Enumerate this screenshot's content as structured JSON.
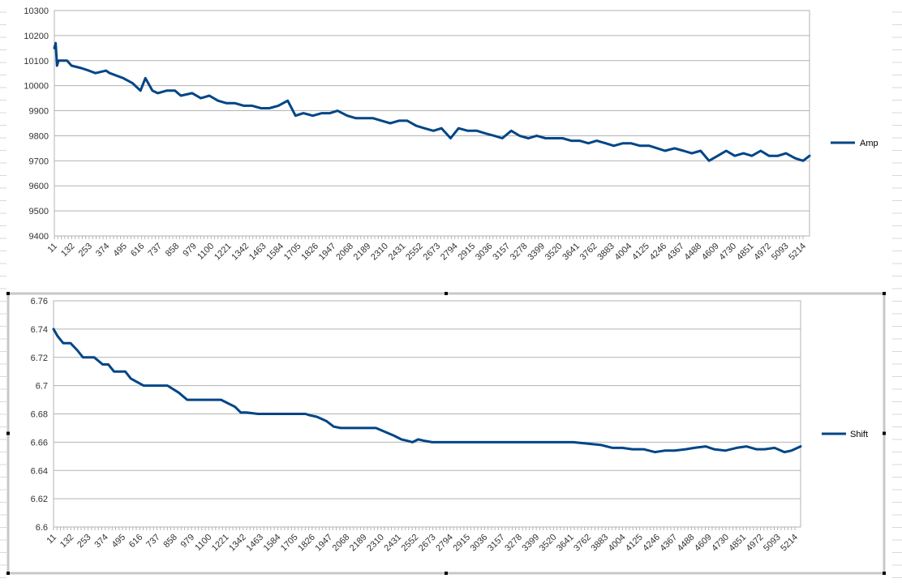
{
  "colors": {
    "series": "#004586",
    "grid": "#b3b3b3",
    "axis": "#b3b3b3",
    "frame": "#a0a0a0"
  },
  "chart_data": [
    {
      "type": "line",
      "legend": "right",
      "grid": true,
      "ylim": [
        9400,
        10300
      ],
      "yticks": [
        "10300",
        "10200",
        "10100",
        "10000",
        "9900",
        "9800",
        "9700",
        "9600",
        "9500",
        "9400"
      ],
      "categories": [
        "11",
        "132",
        "253",
        "374",
        "495",
        "616",
        "737",
        "858",
        "979",
        "1100",
        "1221",
        "1342",
        "1463",
        "1584",
        "1705",
        "1826",
        "1947",
        "2068",
        "2189",
        "2310",
        "2431",
        "2552",
        "2673",
        "2794",
        "2915",
        "3036",
        "3157",
        "3278",
        "3399",
        "3520",
        "3641",
        "3762",
        "3883",
        "4004",
        "4125",
        "4246",
        "4367",
        "4488",
        "4609",
        "4730",
        "4851",
        "4972",
        "5093",
        "5214"
      ],
      "series": [
        {
          "name": "Amp",
          "x": [
            11,
            20,
            30,
            40,
            60,
            100,
            132,
            200,
            253,
            300,
            374,
            400,
            495,
            560,
            616,
            650,
            700,
            737,
            800,
            858,
            900,
            979,
            1040,
            1100,
            1160,
            1221,
            1280,
            1342,
            1400,
            1463,
            1520,
            1584,
            1650,
            1705,
            1760,
            1826,
            1890,
            1947,
            2000,
            2068,
            2130,
            2189,
            2250,
            2310,
            2370,
            2431,
            2490,
            2552,
            2610,
            2673,
            2730,
            2794,
            2850,
            2915,
            2980,
            3036,
            3100,
            3157,
            3220,
            3278,
            3340,
            3399,
            3460,
            3520,
            3580,
            3641,
            3700,
            3762,
            3820,
            3883,
            3940,
            4004,
            4060,
            4125,
            4190,
            4246,
            4300,
            4367,
            4430,
            4488,
            4550,
            4609,
            4670,
            4730,
            4790,
            4851,
            4910,
            4972,
            5030,
            5093,
            5150,
            5214,
            5270,
            5315
          ],
          "values": [
            10150,
            10170,
            10080,
            10100,
            10100,
            10100,
            10080,
            10070,
            10060,
            10050,
            10060,
            10050,
            10030,
            10010,
            9980,
            10030,
            9980,
            9970,
            9980,
            9980,
            9960,
            9970,
            9950,
            9960,
            9940,
            9930,
            9930,
            9920,
            9920,
            9910,
            9910,
            9920,
            9940,
            9880,
            9890,
            9880,
            9890,
            9890,
            9900,
            9880,
            9870,
            9870,
            9870,
            9860,
            9850,
            9860,
            9860,
            9840,
            9830,
            9820,
            9830,
            9790,
            9830,
            9820,
            9820,
            9810,
            9800,
            9790,
            9820,
            9800,
            9790,
            9800,
            9790,
            9790,
            9790,
            9780,
            9780,
            9770,
            9780,
            9770,
            9760,
            9770,
            9770,
            9760,
            9760,
            9750,
            9740,
            9750,
            9740,
            9730,
            9740,
            9700,
            9720,
            9740,
            9720,
            9730,
            9720,
            9740,
            9720,
            9720,
            9730,
            9710,
            9700,
            9720
          ]
        }
      ]
    },
    {
      "type": "line",
      "legend": "right",
      "grid": true,
      "ylim": [
        6.6,
        6.76
      ],
      "yticks": [
        "6.76",
        "6.74",
        "6.72",
        "6.7",
        "6.68",
        "6.66",
        "6.64",
        "6.62",
        "6.6"
      ],
      "categories": [
        "11",
        "132",
        "253",
        "374",
        "495",
        "616",
        "737",
        "858",
        "979",
        "1100",
        "1221",
        "1342",
        "1463",
        "1584",
        "1705",
        "1826",
        "1947",
        "2068",
        "2189",
        "2310",
        "2431",
        "2552",
        "2673",
        "2794",
        "2915",
        "3036",
        "3157",
        "3278",
        "3399",
        "3520",
        "3641",
        "3762",
        "3883",
        "4004",
        "4125",
        "4246",
        "4367",
        "4488",
        "4609",
        "4730",
        "4851",
        "4972",
        "5093",
        "5214"
      ],
      "series": [
        {
          "name": "Shift",
          "x": [
            11,
            40,
            80,
            132,
            180,
            220,
            253,
            300,
            360,
            400,
            440,
            520,
            560,
            650,
            700,
            760,
            820,
            900,
            960,
            1000,
            1050,
            1100,
            1200,
            1300,
            1340,
            1380,
            1463,
            1600,
            1700,
            1800,
            1830,
            1880,
            1947,
            2000,
            2050,
            2150,
            2300,
            2420,
            2440,
            2480,
            2520,
            2560,
            2600,
            2640,
            2700,
            2780,
            2900,
            3000,
            3100,
            3300,
            3500,
            3700,
            3800,
            3900,
            3980,
            4050,
            4120,
            4200,
            4280,
            4350,
            4420,
            4500,
            4560,
            4640,
            4700,
            4780,
            4860,
            4930,
            5000,
            5060,
            5130,
            5200,
            5250,
            5315
          ],
          "values": [
            6.74,
            6.735,
            6.73,
            6.73,
            6.725,
            6.72,
            6.72,
            6.72,
            6.715,
            6.715,
            6.71,
            6.71,
            6.705,
            6.7,
            6.7,
            6.7,
            6.7,
            6.695,
            6.69,
            6.69,
            6.69,
            6.69,
            6.69,
            6.685,
            6.681,
            6.681,
            6.68,
            6.68,
            6.68,
            6.68,
            6.679,
            6.678,
            6.675,
            6.671,
            6.67,
            6.67,
            6.67,
            6.665,
            6.664,
            6.662,
            6.661,
            6.66,
            6.662,
            6.661,
            6.66,
            6.66,
            6.66,
            6.66,
            6.66,
            6.66,
            6.66,
            6.66,
            6.659,
            6.658,
            6.656,
            6.656,
            6.655,
            6.655,
            6.653,
            6.654,
            6.654,
            6.655,
            6.656,
            6.657,
            6.655,
            6.654,
            6.656,
            6.657,
            6.655,
            6.655,
            6.656,
            6.653,
            6.654,
            6.657
          ]
        }
      ]
    }
  ]
}
